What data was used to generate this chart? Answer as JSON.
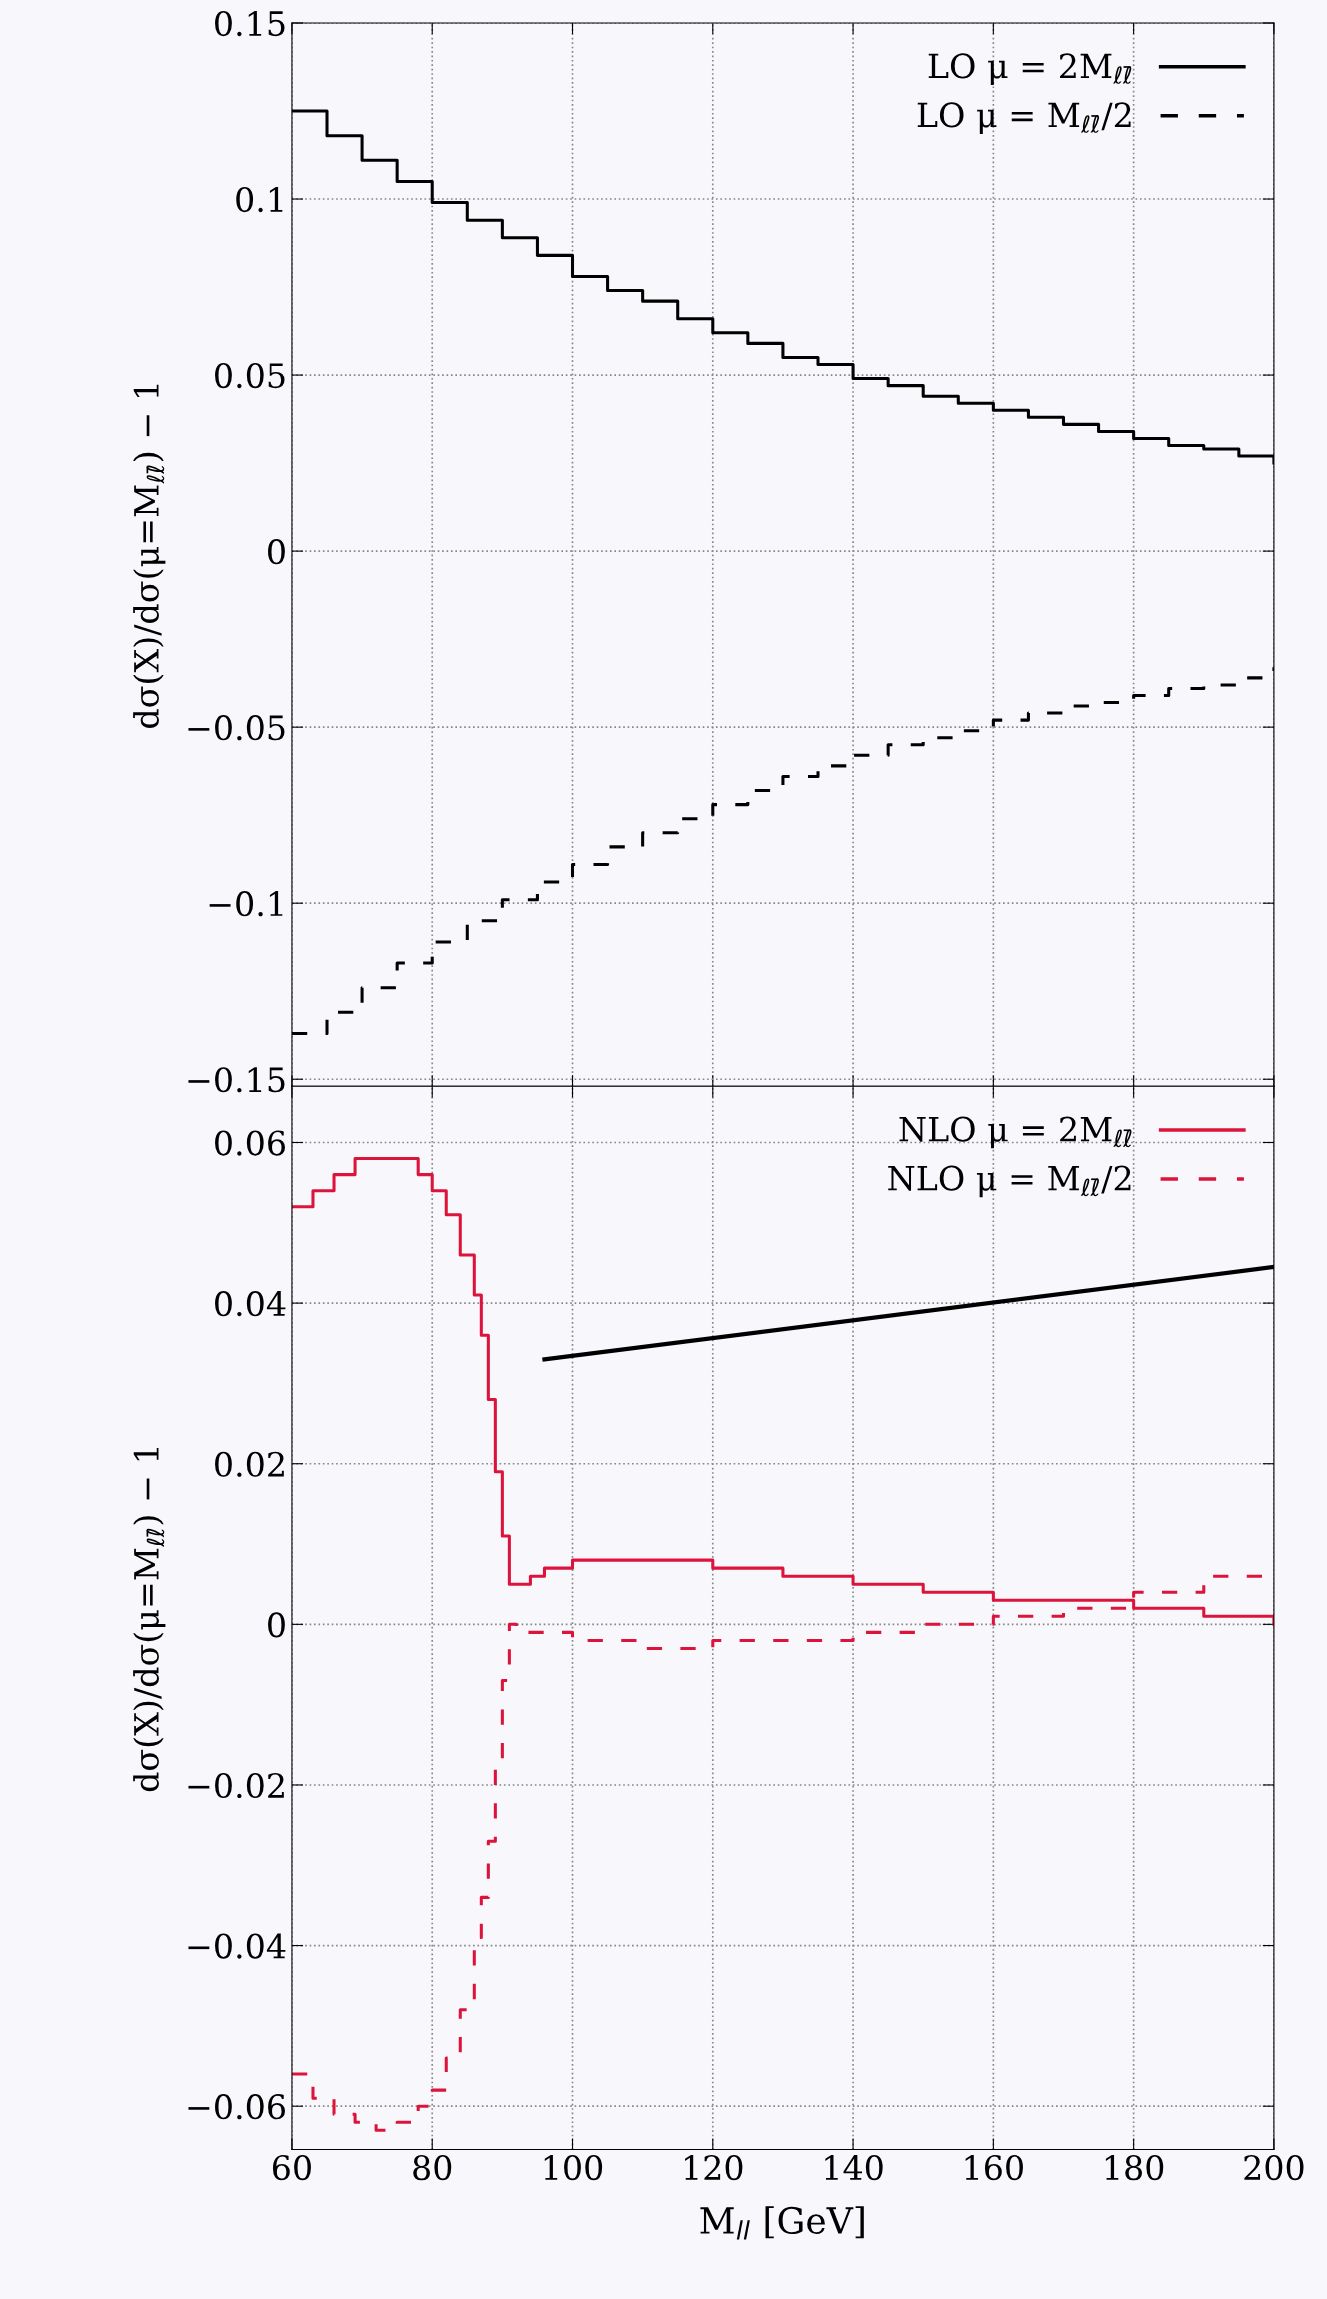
{
  "chart_data": [
    {
      "type": "step",
      "ylabel": "dσ(X)/dσ(μ=M$_{ℓℓ̄}$) − 1",
      "xlim": [
        60,
        200
      ],
      "xticks": [
        60,
        80,
        100,
        120,
        140,
        160,
        180,
        200
      ],
      "ylim": [
        -0.152,
        0.15
      ],
      "yticks": [
        -0.15,
        -0.1,
        -0.05,
        0,
        0.05,
        0.1,
        0.15
      ],
      "grid": true,
      "legend": "top right",
      "tick_labels": "y",
      "series": [
        {
          "name": "LO μ = 2M$_{ℓℓ̄}$",
          "color": "#000000",
          "line_style": "solid",
          "x": [
            60,
            65,
            70,
            75,
            80,
            85,
            90,
            95,
            100,
            105,
            110,
            115,
            120,
            125,
            130,
            135,
            140,
            145,
            150,
            155,
            160,
            165,
            170,
            175,
            180,
            185,
            190,
            195,
            200
          ],
          "values": [
            0.125,
            0.118,
            0.111,
            0.105,
            0.099,
            0.094,
            0.089,
            0.084,
            0.078,
            0.074,
            0.071,
            0.066,
            0.062,
            0.059,
            0.055,
            0.053,
            0.049,
            0.047,
            0.044,
            0.042,
            0.04,
            0.038,
            0.036,
            0.034,
            0.032,
            0.03,
            0.029,
            0.027,
            0.025
          ]
        },
        {
          "name": "LO μ = M$_{ℓℓ̄}$/2",
          "color": "#000000",
          "line_style": "dashed",
          "x": [
            60,
            65,
            70,
            75,
            80,
            85,
            90,
            95,
            100,
            105,
            110,
            115,
            120,
            125,
            130,
            135,
            140,
            145,
            150,
            155,
            160,
            165,
            170,
            175,
            180,
            185,
            190,
            195,
            200
          ],
          "values": [
            -0.137,
            -0.131,
            -0.124,
            -0.117,
            -0.111,
            -0.105,
            -0.099,
            -0.094,
            -0.089,
            -0.084,
            -0.08,
            -0.076,
            -0.072,
            -0.068,
            -0.064,
            -0.061,
            -0.058,
            -0.055,
            -0.053,
            -0.051,
            -0.048,
            -0.046,
            -0.044,
            -0.043,
            -0.041,
            -0.039,
            -0.038,
            -0.036,
            -0.033
          ]
        }
      ]
    },
    {
      "type": "step",
      "ylabel": "dσ(X)/dσ(μ=M$_{ℓℓ̄}$) − 1",
      "xlabel": "M$_{ll}$ [GeV]",
      "xlim": [
        60,
        200
      ],
      "xticks": [
        60,
        80,
        100,
        120,
        140,
        160,
        180,
        200
      ],
      "ylim": [
        -0.0654,
        0.067
      ],
      "yticks": [
        {
          "value": -0.06,
          "label": "−0.06"
        },
        {
          "value": -0.04,
          "label": "−0.04"
        },
        {
          "value": -0.02,
          "label": "−0.02"
        },
        0,
        0.02,
        0.04,
        0.06
      ],
      "grid": true,
      "legend": "top right",
      "series": [
        {
          "name": "NLO μ = 2M$_{ℓℓ̄}$",
          "color": "#dc143c",
          "line_style": "solid",
          "x": [
            60,
            63,
            66,
            69,
            72,
            75,
            78,
            80,
            82,
            84,
            86,
            87,
            88,
            89,
            90,
            91,
            92,
            94,
            96,
            100,
            110,
            120,
            130,
            140,
            150,
            160,
            170,
            180,
            190,
            200
          ],
          "values": [
            0.052,
            0.054,
            0.056,
            0.058,
            0.058,
            0.058,
            0.056,
            0.054,
            0.051,
            0.046,
            0.041,
            0.036,
            0.028,
            0.019,
            0.011,
            0.005,
            0.005,
            0.006,
            0.007,
            0.008,
            0.008,
            0.007,
            0.006,
            0.005,
            0.004,
            0.003,
            0.003,
            0.002,
            0.001,
            0.0
          ]
        },
        {
          "name": "NLO μ = M$_{ℓℓ̄}$/2",
          "color": "#dc143c",
          "line_style": "dashed",
          "x": [
            60,
            63,
            66,
            69,
            72,
            75,
            78,
            80,
            82,
            84,
            86,
            87,
            88,
            89,
            90,
            91,
            92,
            95,
            100,
            110,
            120,
            130,
            140,
            150,
            160,
            170,
            180,
            190,
            200
          ],
          "values": [
            -0.056,
            -0.059,
            -0.061,
            -0.062,
            -0.063,
            -0.062,
            -0.06,
            -0.058,
            -0.054,
            -0.048,
            -0.039,
            -0.034,
            -0.027,
            -0.018,
            -0.007,
            0.0,
            -0.001,
            -0.001,
            -0.002,
            -0.003,
            -0.002,
            -0.002,
            -0.001,
            0.0,
            0.001,
            0.002,
            0.004,
            0.006,
            0.006
          ]
        },
        {
          "type": "line",
          "color": "#000000",
          "line_style": "solid",
          "x": [
            96,
            200
          ],
          "values": [
            0.033,
            0.0445
          ]
        }
      ]
    }
  ]
}
